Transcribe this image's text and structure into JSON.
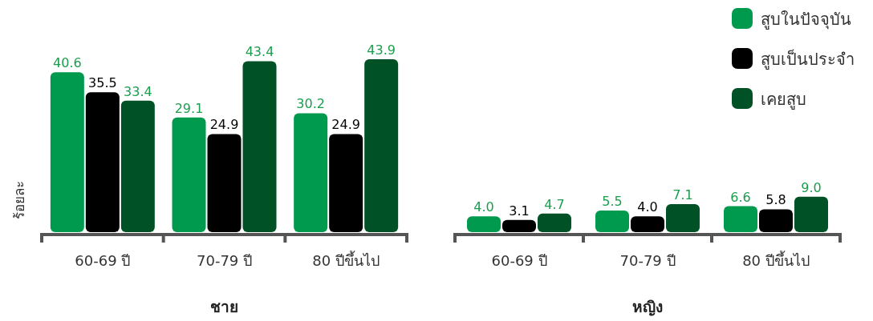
{
  "chart_data": [
    {
      "type": "bar",
      "xlabel": "ชาย",
      "ylabel": "ร้อยละ",
      "categories": [
        "60-69 ปี",
        "70-79 ปี",
        "80 ปีขึ้นไป"
      ],
      "tick_labels": "x",
      "legend": false,
      "series": [
        {
          "color": "#009a4e",
          "values": [
            40.6,
            29.1,
            30.2
          ],
          "value_labels": [
            "40.6",
            "29.1",
            "30.2"
          ]
        },
        {
          "color": "#000000",
          "values": [
            35.5,
            24.9,
            24.9
          ],
          "value_labels": [
            "35.5",
            "24.9",
            "24.9"
          ]
        },
        {
          "color": "#005226",
          "values": [
            33.4,
            43.4,
            43.9
          ],
          "value_labels": [
            "33.4",
            "43.4",
            "43.9"
          ]
        }
      ]
    },
    {
      "type": "bar",
      "xlabel": "หญิง",
      "categories": [
        "60-69 ปี",
        "70-79 ปี",
        "80 ปีขึ้นไป"
      ],
      "tick_labels": "x",
      "legend": "top right",
      "series": [
        {
          "name": "สูบในปัจจุบัน",
          "color": "#009a4e",
          "values": [
            4.0,
            5.5,
            6.6
          ],
          "value_labels": [
            "4.0",
            "5.5",
            "6.6"
          ]
        },
        {
          "name": "สูบเป็นประจำ",
          "color": "#000000",
          "values": [
            3.1,
            4.0,
            5.8
          ],
          "value_labels": [
            "3.1",
            "4.0",
            "5.8"
          ]
        },
        {
          "name": "เคยสูบ",
          "color": "#005226",
          "values": [
            4.7,
            7.1,
            9.0
          ],
          "value_labels": [
            "4.7",
            "7.1",
            "9.0"
          ]
        }
      ]
    }
  ]
}
